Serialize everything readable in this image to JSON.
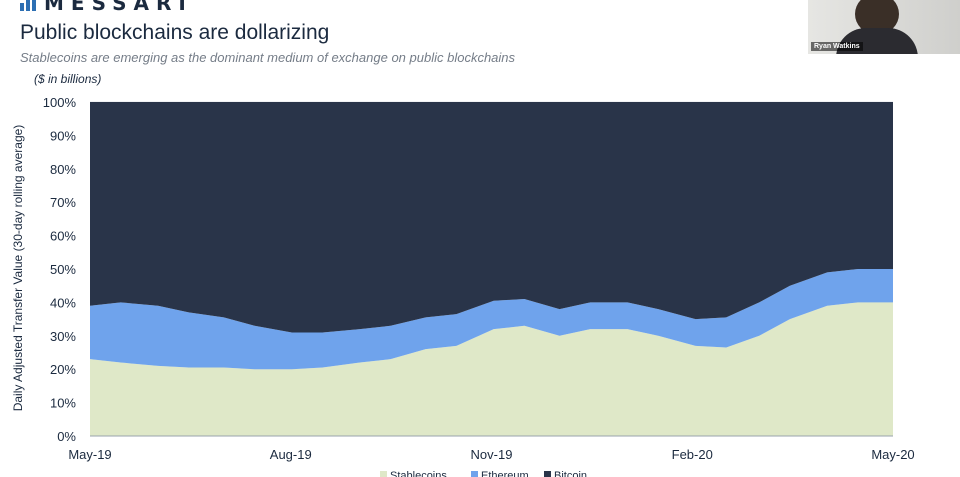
{
  "header": {
    "logo_text": "MESSARI",
    "title": "Public blockchains are dollarizing",
    "subtitle": "Stablecoins are emerging as the dominant medium of exchange on public blockchains",
    "unit_note": "($ in billions)"
  },
  "video": {
    "participant_name": "Ryan Watkins"
  },
  "colors": {
    "stablecoins": "#dfe8c8",
    "ethereum": "#6fa3ec",
    "bitcoin": "#293449",
    "brand": "#2d6fb3"
  },
  "chart_data": {
    "type": "area",
    "stacked": true,
    "normalized": true,
    "title": "Public blockchains are dollarizing",
    "ylabel": "Daily Adjusted Transfer Value (30-day rolling average)",
    "xlabel": "",
    "ylim": [
      0,
      100
    ],
    "y_ticks": [
      "0%",
      "10%",
      "20%",
      "30%",
      "40%",
      "50%",
      "60%",
      "70%",
      "80%",
      "90%",
      "100%"
    ],
    "x_ticks": [
      "May-19",
      "Aug-19",
      "Nov-19",
      "Feb-20",
      "May-20"
    ],
    "x": [
      "2019-05-01",
      "2019-05-15",
      "2019-06-01",
      "2019-06-15",
      "2019-07-01",
      "2019-07-15",
      "2019-08-01",
      "2019-08-15",
      "2019-09-01",
      "2019-09-15",
      "2019-10-01",
      "2019-10-15",
      "2019-11-01",
      "2019-11-15",
      "2019-12-01",
      "2019-12-15",
      "2020-01-01",
      "2020-01-15",
      "2020-02-01",
      "2020-02-15",
      "2020-03-01",
      "2020-03-15",
      "2020-04-01",
      "2020-04-15",
      "2020-05-01"
    ],
    "series": [
      {
        "name": "Stablecoins",
        "values": [
          23,
          22,
          21,
          20.5,
          20.5,
          20,
          20,
          20.5,
          22,
          23,
          26,
          27,
          32,
          33,
          30,
          32,
          32,
          30,
          27,
          26.5,
          30,
          35,
          39,
          40,
          40
        ]
      },
      {
        "name": "Ethereum",
        "values": [
          16,
          18,
          18,
          16.5,
          15,
          13,
          11,
          10.5,
          10,
          10,
          9.5,
          9.5,
          8.5,
          8,
          8,
          8,
          8,
          8,
          8,
          9,
          10,
          10,
          10,
          10,
          10
        ]
      },
      {
        "name": "Bitcoin",
        "values": [
          61,
          60,
          61,
          63,
          64.5,
          67,
          69,
          69,
          68,
          67,
          64.5,
          63.5,
          59.5,
          59,
          62,
          60,
          60,
          62,
          65,
          64.5,
          60,
          55,
          51,
          50,
          50
        ]
      }
    ],
    "legend_position": "bottom"
  }
}
